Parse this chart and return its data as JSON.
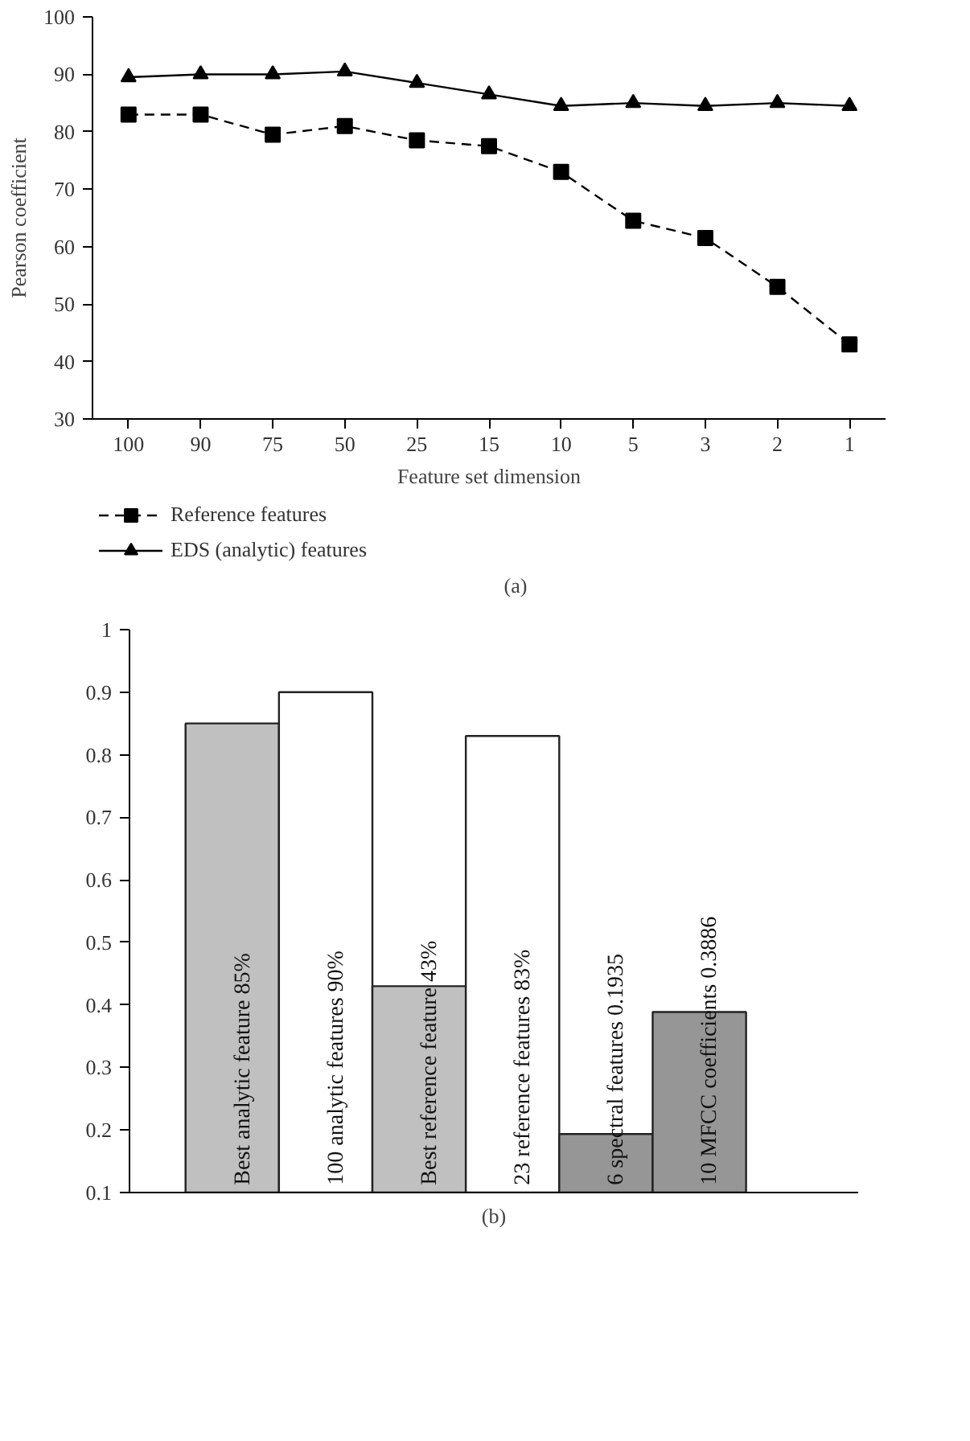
{
  "chart_data": [
    {
      "type": "line",
      "categories": [
        "100",
        "90",
        "75",
        "50",
        "25",
        "15",
        "10",
        "5",
        "3",
        "2",
        "1"
      ],
      "xlabel": "Feature set dimension",
      "ylabel": "Pearson coefficient",
      "ylim": [
        30,
        100
      ],
      "yticks": [
        30,
        40,
        50,
        60,
        70,
        80,
        90,
        100
      ],
      "grid": false,
      "legend": "bottom",
      "annotations": [
        "(a)"
      ],
      "series": [
        {
          "name": "Reference features",
          "color": "#000000",
          "marker": "square",
          "line_style": "dashed",
          "values": [
            83,
            83,
            79.5,
            81,
            78.5,
            77.5,
            73,
            64.5,
            61.5,
            53,
            43
          ]
        },
        {
          "name": "EDS (analytic) features",
          "color": "#000000",
          "marker": "triangle",
          "line_style": "solid",
          "values": [
            89.5,
            90,
            90,
            90.5,
            88.5,
            86.5,
            84.5,
            85,
            84.5,
            85,
            84.5
          ]
        }
      ]
    },
    {
      "type": "bar",
      "categories": [
        "Best analytic feature 85%",
        "100 analytic features 90%",
        "Best reference feature 43%",
        "23 reference features 83%",
        "6 spectral features 0.1935",
        "10 MFCC coefficients 0.3886"
      ],
      "values": [
        0.85,
        0.9,
        0.43,
        0.83,
        0.1935,
        0.3886
      ],
      "colors": [
        "#c0c0c0",
        "#ffffff",
        "#c0c0c0",
        "#ffffff",
        "#969696",
        "#969696"
      ],
      "ylim": [
        0.1,
        1
      ],
      "yticks": [
        0.1,
        0.2,
        0.3,
        0.4,
        0.5,
        0.6,
        0.7,
        0.8,
        0.9,
        1
      ],
      "grid": false,
      "annotations": [
        "(b)"
      ]
    }
  ]
}
